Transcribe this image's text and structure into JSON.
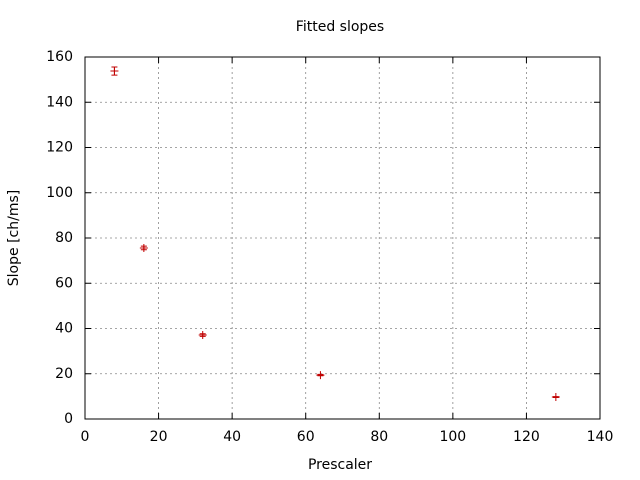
{
  "chart_data": {
    "type": "scatter",
    "title": "Fitted slopes",
    "x_label": "Prescaler",
    "y_label": "Slope [ch/ms]",
    "x": [
      8,
      16,
      32,
      64,
      128
    ],
    "values": [
      153.8,
      75.6,
      37.1,
      19.4,
      9.7
    ],
    "errors": [
      1.8,
      0.8,
      0.6,
      0.3,
      0.2
    ],
    "color": "#c00000",
    "xlim": [
      0,
      140
    ],
    "xticks": [
      0,
      20,
      40,
      60,
      80,
      100,
      120,
      140
    ],
    "ylim": [
      0,
      160
    ],
    "yticks": [
      0,
      20,
      40,
      60,
      80,
      100,
      120,
      140,
      160
    ],
    "grid": true
  }
}
